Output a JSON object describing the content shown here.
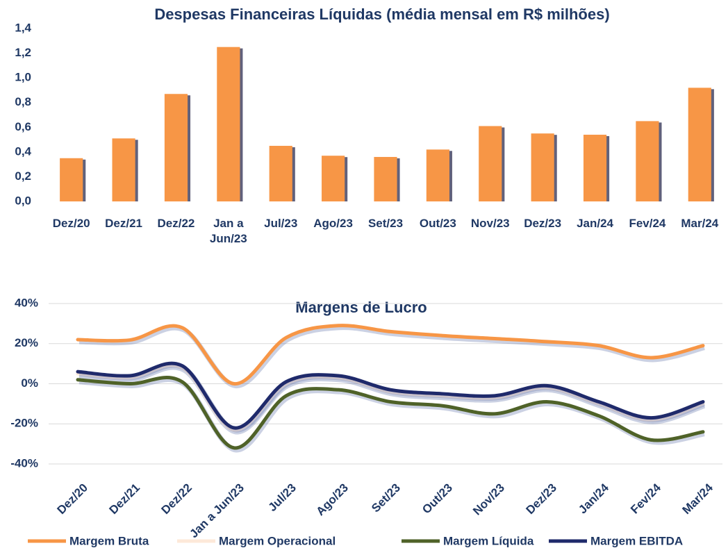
{
  "chart_data": [
    {
      "type": "bar",
      "title": "Despesas Financeiras Líquidas (média mensal em R$ milhões)",
      "categories": [
        "Dez/20",
        "Dez/21",
        "Dez/22",
        "Jan a Jun/23",
        "Jul/23",
        "Ago/23",
        "Set/23",
        "Out/23",
        "Nov/23",
        "Dez/23",
        "Jan/24",
        "Fev/24",
        "Mar/24"
      ],
      "values": [
        0.35,
        0.51,
        0.87,
        1.25,
        0.45,
        0.37,
        0.36,
        0.42,
        0.61,
        0.55,
        0.54,
        0.65,
        0.92
      ],
      "color": "#f79646",
      "ylim": [
        0,
        1.4
      ],
      "yticks": [
        {
          "value": 0,
          "label": "0,0"
        },
        {
          "value": 0.2,
          "label": "0,2"
        },
        {
          "value": 0.4,
          "label": "0,4"
        },
        {
          "value": 0.6,
          "label": "0,6"
        },
        {
          "value": 0.8,
          "label": "0,8"
        },
        {
          "value": 1,
          "label": "1,0"
        },
        {
          "value": 1.2,
          "label": "1,2"
        },
        {
          "value": 1.4,
          "label": "1,4"
        }
      ],
      "grid": false
    },
    {
      "type": "line",
      "title": "Margens de Lucro",
      "categories": [
        "Dez/20",
        "Dez/21",
        "Dez/22",
        "Jan a Jun/23",
        "Jul/23",
        "Ago/23",
        "Set/23",
        "Out/23",
        "Nov/23",
        "Dez/23",
        "Jan/24",
        "Fev/24",
        "Mar/24"
      ],
      "series": [
        {
          "name": "Margem Bruta",
          "color": "#f79646",
          "values": [
            22,
            21.8,
            28,
            0,
            23,
            29,
            26,
            24,
            22.5,
            21,
            19,
            13,
            19
          ]
        },
        {
          "name": "Margem Operacional",
          "color": "#fde9d9",
          "values": [
            5,
            3,
            8,
            -23,
            0,
            3,
            -4,
            -6,
            -7,
            -2,
            -10,
            -18,
            -10
          ]
        },
        {
          "name": "Margem Líquida",
          "color": "#4f6228",
          "values": [
            2,
            0,
            1,
            -32,
            -6,
            -3,
            -9,
            -11,
            -15,
            -9,
            -16,
            -28,
            -24
          ]
        },
        {
          "name": "Margem EBITDA",
          "color": "#1f2a6b",
          "values": [
            6,
            4,
            9,
            -22,
            1,
            4,
            -3,
            -5,
            -6,
            -1,
            -9,
            -17,
            -9
          ]
        }
      ],
      "ylim": [
        -40,
        40
      ],
      "yticks": [
        {
          "value": 40,
          "label": "40%"
        },
        {
          "value": 20,
          "label": "20%"
        },
        {
          "value": 0,
          "label": "0%"
        },
        {
          "value": -20,
          "label": "-20%"
        },
        {
          "value": -40,
          "label": "-40%"
        }
      ],
      "grid": true,
      "legend": "bottom"
    }
  ]
}
